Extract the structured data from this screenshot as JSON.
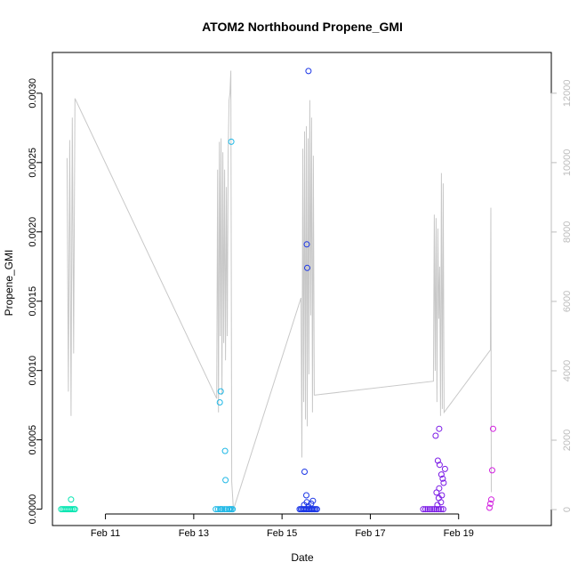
{
  "chart_data": {
    "type": "scatter",
    "title": "ATOM2 Northbound Propene_GMI",
    "xlabel": "Date",
    "ylabel": "Propene_GMI",
    "xlim": [
      9.8,
      21.1
    ],
    "ylim": [
      -0.000118,
      0.003294
    ],
    "y2lim": [
      -460,
      13175
    ],
    "x_ticks": [
      {
        "value": 11,
        "label": "Feb 11"
      },
      {
        "value": 13,
        "label": "Feb 13"
      },
      {
        "value": 15,
        "label": "Feb 15"
      },
      {
        "value": 17,
        "label": "Feb 17"
      },
      {
        "value": 19,
        "label": "Feb 19"
      }
    ],
    "y_ticks": [
      {
        "value": 0,
        "label": "0.0000"
      },
      {
        "value": 0.0005,
        "label": "0.0005"
      },
      {
        "value": 0.001,
        "label": "0.0010"
      },
      {
        "value": 0.0015,
        "label": "0.0015"
      },
      {
        "value": 0.002,
        "label": "0.0020"
      },
      {
        "value": 0.0025,
        "label": "0.0025"
      },
      {
        "value": 0.003,
        "label": "0.0030"
      }
    ],
    "y2_ticks": [
      {
        "value": 0,
        "label": "0"
      },
      {
        "value": 2000,
        "label": "2000"
      },
      {
        "value": 4000,
        "label": "4000"
      },
      {
        "value": 6000,
        "label": "6000"
      },
      {
        "value": 8000,
        "label": "8000"
      },
      {
        "value": 10000,
        "label": "10000"
      },
      {
        "value": 12000,
        "label": "12000"
      }
    ],
    "grid": false,
    "line_color": "#c8c8c8",
    "line_series": [
      [
        10.13,
        10130
      ],
      [
        10.16,
        3400
      ],
      [
        10.19,
        10650
      ],
      [
        10.22,
        2700
      ],
      [
        10.25,
        11300
      ],
      [
        10.28,
        4500
      ],
      [
        10.31,
        11850
      ],
      [
        13.52,
        3200
      ],
      [
        13.54,
        9800
      ],
      [
        13.56,
        2800
      ],
      [
        13.58,
        10600
      ],
      [
        13.6,
        5000
      ],
      [
        13.62,
        10700
      ],
      [
        13.64,
        3300
      ],
      [
        13.66,
        10300
      ],
      [
        13.68,
        4800
      ],
      [
        13.7,
        9800
      ],
      [
        13.72,
        4300
      ],
      [
        13.74,
        9300
      ],
      [
        13.76,
        5000
      ],
      [
        13.78,
        10300
      ],
      [
        13.8,
        11800
      ],
      [
        13.82,
        12000
      ],
      [
        13.84,
        12650
      ],
      [
        13.86,
        800
      ],
      [
        13.9,
        0
      ],
      [
        15.43,
        6100
      ],
      [
        15.45,
        1500
      ],
      [
        15.47,
        10400
      ],
      [
        15.49,
        3100
      ],
      [
        15.51,
        10900
      ],
      [
        15.53,
        2600
      ],
      [
        15.55,
        11050
      ],
      [
        15.57,
        2400
      ],
      [
        15.59,
        10700
      ],
      [
        15.61,
        3900
      ],
      [
        15.63,
        11800
      ],
      [
        15.65,
        5600
      ],
      [
        15.67,
        11300
      ],
      [
        15.69,
        2800
      ],
      [
        15.71,
        10200
      ],
      [
        15.73,
        3300
      ],
      [
        15.75,
        3300
      ],
      [
        18.43,
        3700
      ],
      [
        18.45,
        8500
      ],
      [
        18.47,
        4000
      ],
      [
        18.49,
        8400
      ],
      [
        18.51,
        3100
      ],
      [
        18.53,
        8100
      ],
      [
        18.55,
        5500
      ],
      [
        18.57,
        7000
      ],
      [
        18.59,
        2700
      ],
      [
        18.61,
        9700
      ],
      [
        18.63,
        2900
      ],
      [
        18.65,
        9400
      ],
      [
        18.67,
        2800
      ],
      [
        19.72,
        4600
      ],
      [
        19.73,
        8700
      ],
      [
        19.74,
        500
      ]
    ],
    "series": [
      {
        "color": "#00e5b0",
        "points": [
          [
            10.0,
            0.0
          ],
          [
            10.04,
            0.0
          ],
          [
            10.08,
            0.0
          ],
          [
            10.12,
            0.0
          ],
          [
            10.16,
            0.0
          ],
          [
            10.2,
            0.0
          ],
          [
            10.24,
            0.0
          ],
          [
            10.28,
            0.0
          ],
          [
            10.31,
            0.0
          ],
          [
            10.22,
            7e-05
          ]
        ]
      },
      {
        "color": "#1fb8e6",
        "points": [
          [
            13.5,
            0.0
          ],
          [
            13.55,
            0.0
          ],
          [
            13.6,
            0.0
          ],
          [
            13.65,
            0.0
          ],
          [
            13.7,
            0.0
          ],
          [
            13.75,
            0.0
          ],
          [
            13.8,
            0.0
          ],
          [
            13.85,
            0.0
          ],
          [
            13.88,
            0.0
          ],
          [
            13.62,
            0.0
          ],
          [
            13.82,
            0.0
          ],
          [
            13.61,
            0.00085
          ],
          [
            13.59,
            0.00077
          ],
          [
            13.71,
            0.00042
          ],
          [
            13.72,
            0.00021
          ],
          [
            13.85,
            0.00265
          ]
        ]
      },
      {
        "color": "#1a35e6",
        "points": [
          [
            15.4,
            0.0
          ],
          [
            15.43,
            0.0
          ],
          [
            15.46,
            0.0
          ],
          [
            15.49,
            0.0
          ],
          [
            15.52,
            0.0
          ],
          [
            15.55,
            0.0
          ],
          [
            15.58,
            0.0
          ],
          [
            15.61,
            0.0
          ],
          [
            15.64,
            0.0
          ],
          [
            15.67,
            0.0
          ],
          [
            15.7,
            0.0
          ],
          [
            15.73,
            0.0
          ],
          [
            15.76,
            0.0
          ],
          [
            15.79,
            0.0
          ],
          [
            15.5,
            3e-05
          ],
          [
            15.56,
            5e-05
          ],
          [
            15.6,
            2e-05
          ],
          [
            15.66,
            4e-05
          ],
          [
            15.7,
            6e-05
          ],
          [
            15.51,
            0.00027
          ],
          [
            15.55,
            0.0001
          ],
          [
            15.56,
            0.00191
          ],
          [
            15.57,
            0.00174
          ],
          [
            15.6,
            0.00316
          ]
        ]
      },
      {
        "color": "#7b1ae6",
        "points": [
          [
            18.2,
            0.0
          ],
          [
            18.25,
            0.0
          ],
          [
            18.3,
            0.0
          ],
          [
            18.35,
            0.0
          ],
          [
            18.4,
            0.0
          ],
          [
            18.45,
            0.0
          ],
          [
            18.5,
            0.0
          ],
          [
            18.55,
            0.0
          ],
          [
            18.6,
            0.0
          ],
          [
            18.65,
            0.0
          ],
          [
            18.52,
            3e-05
          ],
          [
            18.55,
            8e-05
          ],
          [
            18.6,
            5e-05
          ],
          [
            18.5,
            0.00012
          ],
          [
            18.56,
            0.00015
          ],
          [
            18.62,
            0.0001
          ],
          [
            18.48,
            0.00053
          ],
          [
            18.56,
            0.00058
          ],
          [
            18.53,
            0.00035
          ],
          [
            18.57,
            0.00032
          ],
          [
            18.61,
            0.00025
          ],
          [
            18.64,
            0.00022
          ],
          [
            18.66,
            0.00019
          ],
          [
            18.69,
            0.00029
          ]
        ]
      },
      {
        "color": "#d21ee0",
        "points": [
          [
            19.7,
            1e-05
          ],
          [
            19.72,
            4e-05
          ],
          [
            19.74,
            7e-05
          ],
          [
            19.78,
            0.00058
          ],
          [
            19.76,
            0.00028
          ]
        ]
      }
    ]
  }
}
